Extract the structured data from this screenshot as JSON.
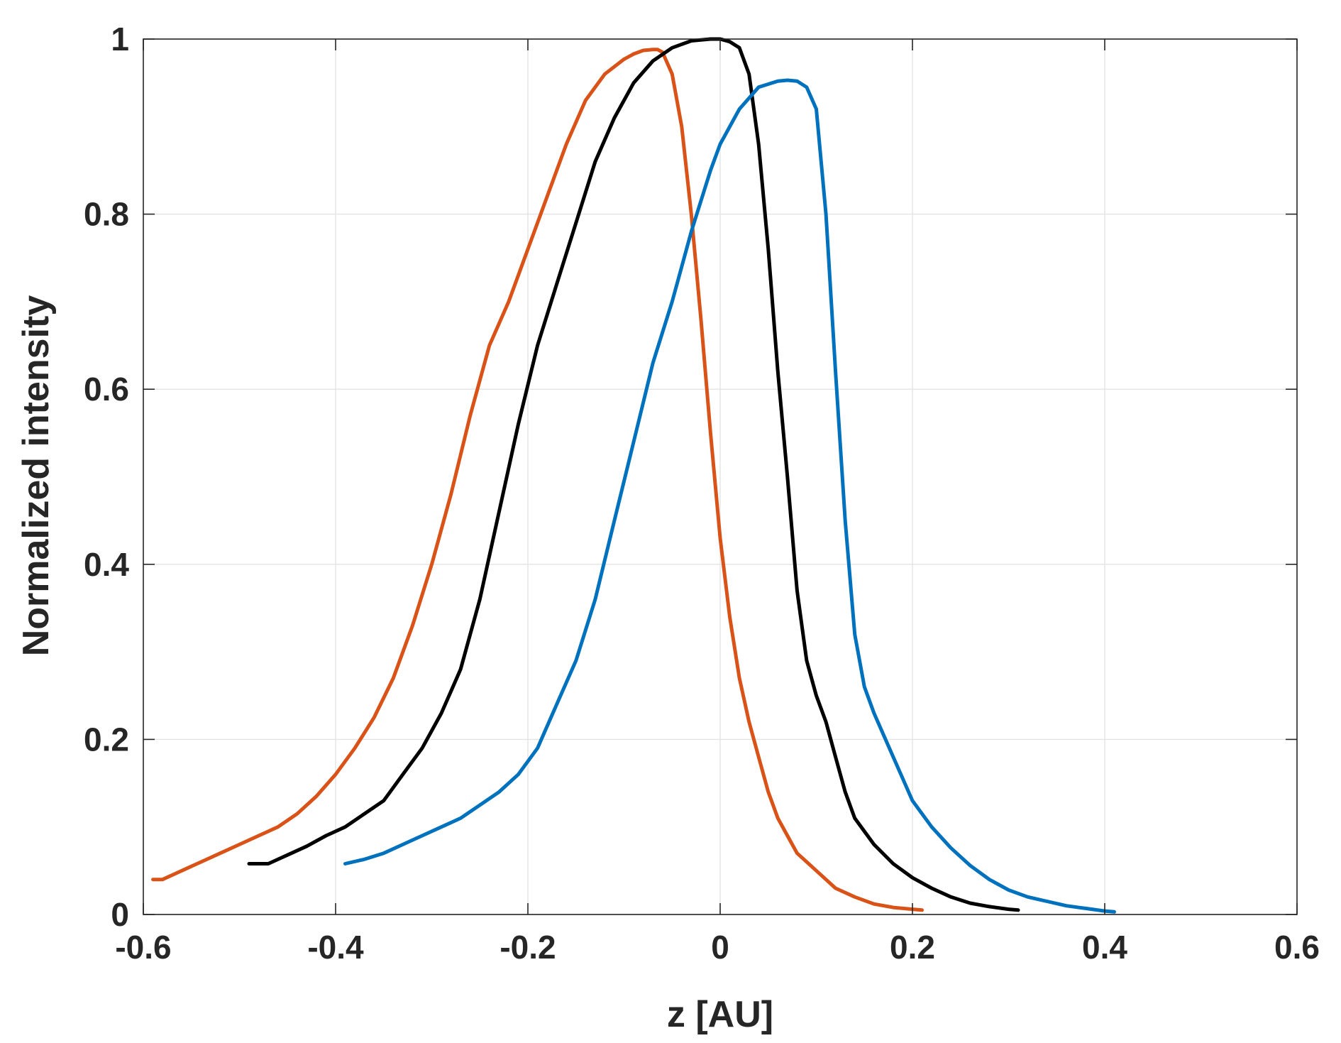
{
  "chart_data": {
    "type": "line",
    "title": "",
    "xlabel": "z [AU]",
    "ylabel": "Normalized intensity",
    "xlim": [
      -0.6,
      0.6
    ],
    "ylim": [
      0,
      1
    ],
    "xticks": [
      -0.6,
      -0.4,
      -0.2,
      0,
      0.2,
      0.4,
      0.6
    ],
    "yticks": [
      0,
      0.2,
      0.4,
      0.6,
      0.8,
      1
    ],
    "xtick_labels": [
      "-0.6",
      "-0.4",
      "-0.2",
      "0",
      "0.2",
      "0.4",
      "0.6"
    ],
    "ytick_labels": [
      "0",
      "0.2",
      "0.4",
      "0.6",
      "0.8",
      "1"
    ],
    "grid": true,
    "series": [
      {
        "color": "#D95319",
        "x": [
          -0.59,
          -0.58,
          -0.56,
          -0.54,
          -0.52,
          -0.5,
          -0.48,
          -0.46,
          -0.44,
          -0.42,
          -0.4,
          -0.38,
          -0.36,
          -0.34,
          -0.32,
          -0.3,
          -0.28,
          -0.26,
          -0.24,
          -0.22,
          -0.2,
          -0.18,
          -0.16,
          -0.14,
          -0.12,
          -0.1,
          -0.09,
          -0.08,
          -0.07,
          -0.065,
          -0.06,
          -0.05,
          -0.04,
          -0.03,
          -0.02,
          -0.01,
          0,
          0.01,
          0.02,
          0.03,
          0.04,
          0.05,
          0.06,
          0.07,
          0.08,
          0.1,
          0.12,
          0.14,
          0.16,
          0.18,
          0.2,
          0.21
        ],
        "y": [
          0.04,
          0.04,
          0.05,
          0.06,
          0.07,
          0.08,
          0.09,
          0.1,
          0.115,
          0.135,
          0.16,
          0.19,
          0.225,
          0.27,
          0.33,
          0.4,
          0.48,
          0.57,
          0.65,
          0.7,
          0.76,
          0.82,
          0.88,
          0.93,
          0.96,
          0.977,
          0.983,
          0.987,
          0.988,
          0.988,
          0.985,
          0.96,
          0.9,
          0.8,
          0.68,
          0.55,
          0.43,
          0.34,
          0.27,
          0.22,
          0.18,
          0.14,
          0.11,
          0.09,
          0.07,
          0.05,
          0.03,
          0.02,
          0.012,
          0.008,
          0.006,
          0.005
        ]
      },
      {
        "color": "#000000",
        "x": [
          -0.49,
          -0.47,
          -0.45,
          -0.43,
          -0.41,
          -0.39,
          -0.37,
          -0.35,
          -0.33,
          -0.31,
          -0.29,
          -0.27,
          -0.25,
          -0.23,
          -0.21,
          -0.19,
          -0.17,
          -0.15,
          -0.13,
          -0.11,
          -0.09,
          -0.07,
          -0.05,
          -0.03,
          -0.01,
          0,
          0.01,
          0.02,
          0.03,
          0.04,
          0.05,
          0.06,
          0.07,
          0.08,
          0.09,
          0.1,
          0.11,
          0.12,
          0.13,
          0.14,
          0.16,
          0.18,
          0.2,
          0.22,
          0.24,
          0.26,
          0.28,
          0.3,
          0.31
        ],
        "y": [
          0.058,
          0.058,
          0.068,
          0.078,
          0.09,
          0.1,
          0.115,
          0.13,
          0.16,
          0.19,
          0.23,
          0.28,
          0.36,
          0.46,
          0.56,
          0.65,
          0.72,
          0.79,
          0.86,
          0.91,
          0.95,
          0.975,
          0.99,
          0.998,
          1,
          1,
          0.997,
          0.99,
          0.96,
          0.88,
          0.76,
          0.62,
          0.5,
          0.37,
          0.29,
          0.25,
          0.22,
          0.18,
          0.14,
          0.11,
          0.08,
          0.058,
          0.042,
          0.03,
          0.02,
          0.013,
          0.009,
          0.006,
          0.005
        ]
      },
      {
        "color": "#0072BD",
        "x": [
          -0.39,
          -0.37,
          -0.35,
          -0.33,
          -0.31,
          -0.29,
          -0.27,
          -0.25,
          -0.23,
          -0.21,
          -0.19,
          -0.17,
          -0.15,
          -0.13,
          -0.11,
          -0.09,
          -0.07,
          -0.05,
          -0.03,
          -0.01,
          0,
          0.02,
          0.04,
          0.06,
          0.07,
          0.08,
          0.09,
          0.1,
          0.11,
          0.12,
          0.13,
          0.14,
          0.15,
          0.16,
          0.18,
          0.2,
          0.22,
          0.24,
          0.26,
          0.28,
          0.3,
          0.32,
          0.34,
          0.36,
          0.38,
          0.4,
          0.41
        ],
        "y": [
          0.058,
          0.063,
          0.07,
          0.08,
          0.09,
          0.1,
          0.11,
          0.125,
          0.14,
          0.16,
          0.19,
          0.24,
          0.29,
          0.36,
          0.45,
          0.54,
          0.63,
          0.7,
          0.78,
          0.85,
          0.88,
          0.92,
          0.945,
          0.952,
          0.953,
          0.952,
          0.945,
          0.92,
          0.8,
          0.62,
          0.45,
          0.32,
          0.26,
          0.23,
          0.18,
          0.13,
          0.1,
          0.076,
          0.056,
          0.04,
          0.028,
          0.02,
          0.015,
          0.01,
          0.007,
          0.004,
          0.003
        ]
      }
    ]
  }
}
